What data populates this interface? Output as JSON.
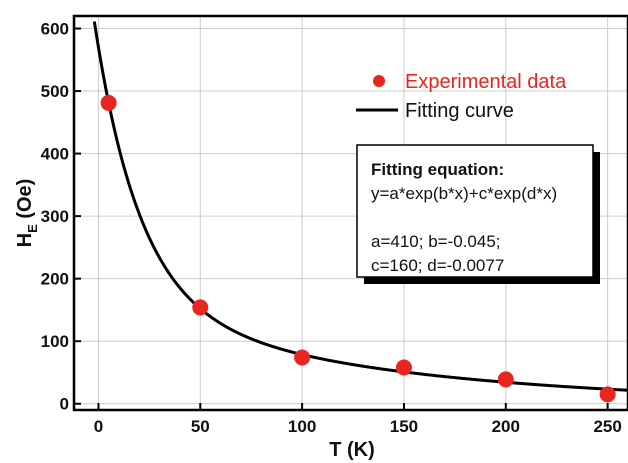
{
  "chart_data": {
    "type": "scatter",
    "xlabel": "T (K)",
    "ylabel_main": "H",
    "ylabel_sub": "E",
    "ylabel_rest": " (Oe)",
    "xlim": [
      -12,
      260
    ],
    "ylim": [
      -10,
      620
    ],
    "xticks": [
      0,
      50,
      100,
      150,
      200,
      250
    ],
    "yticks": [
      0,
      100,
      200,
      300,
      400,
      500,
      600
    ],
    "grid": true,
    "series": [
      {
        "name": "Experimental data",
        "type": "scatter",
        "color": "#e8251f",
        "x": [
          5,
          50,
          100,
          150,
          200,
          250
        ],
        "y": [
          481,
          154,
          74,
          58,
          39,
          15
        ]
      },
      {
        "name": "Fitting curve",
        "type": "line",
        "color": "#000000",
        "equation": {
          "a": 410,
          "b": -0.045,
          "c": 160,
          "d": -0.0077
        }
      }
    ],
    "legend": {
      "position": "top-right"
    },
    "annotation": {
      "title": "Fitting equation:",
      "equation": "y=a*exp(b*x)+c*exp(d*x)",
      "line1": "a=410; b=-0.045;",
      "line2": "c=160; d=-0.0077"
    }
  }
}
